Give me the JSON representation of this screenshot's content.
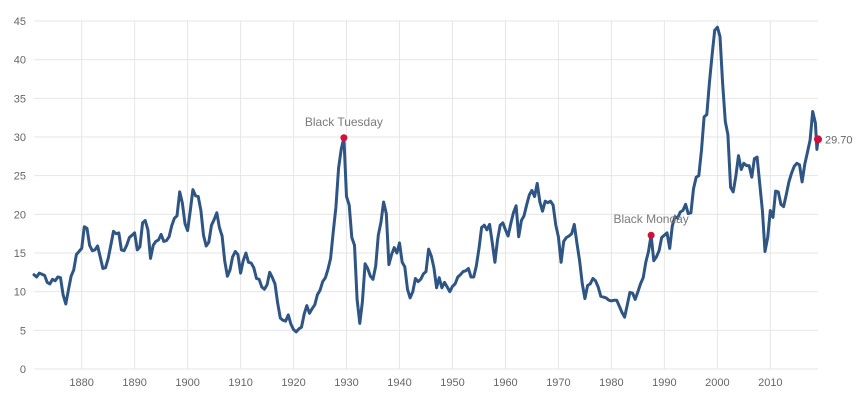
{
  "colors": {
    "line": "#2e5583",
    "marker": "#d0103a",
    "grid": "#e6e6e6",
    "text": "#666666"
  },
  "chart_data": {
    "type": "line",
    "title": "",
    "xlabel": "",
    "ylabel": "",
    "xlim": [
      1871,
      2019
    ],
    "ylim": [
      0,
      45
    ],
    "grid": true,
    "x_ticks": [
      1880,
      1890,
      1900,
      1910,
      1920,
      1930,
      1940,
      1950,
      1960,
      1970,
      1980,
      1990,
      2000,
      2010
    ],
    "y_ticks": [
      0,
      5,
      10,
      15,
      20,
      25,
      30,
      35,
      40,
      45
    ],
    "series": [
      {
        "points": [
          [
            1871.0,
            12.2
          ],
          [
            1871.5,
            11.9
          ],
          [
            1872.0,
            12.4
          ],
          [
            1873.0,
            12.1
          ],
          [
            1873.5,
            11.2
          ],
          [
            1874.0,
            11.0
          ],
          [
            1874.5,
            11.6
          ],
          [
            1875.0,
            11.4
          ],
          [
            1875.5,
            11.9
          ],
          [
            1876.0,
            11.8
          ],
          [
            1876.5,
            9.6
          ],
          [
            1877.0,
            8.4
          ],
          [
            1877.5,
            10.2
          ],
          [
            1878.0,
            12.0
          ],
          [
            1878.5,
            12.8
          ],
          [
            1879.0,
            14.8
          ],
          [
            1880.0,
            15.6
          ],
          [
            1880.5,
            18.4
          ],
          [
            1881.0,
            18.2
          ],
          [
            1881.5,
            16.0
          ],
          [
            1882.0,
            15.3
          ],
          [
            1882.5,
            15.4
          ],
          [
            1883.0,
            15.9
          ],
          [
            1883.5,
            14.5
          ],
          [
            1884.0,
            13.0
          ],
          [
            1884.5,
            13.1
          ],
          [
            1885.0,
            14.3
          ],
          [
            1885.5,
            16.0
          ],
          [
            1886.0,
            17.8
          ],
          [
            1886.5,
            17.5
          ],
          [
            1887.0,
            17.6
          ],
          [
            1887.5,
            15.4
          ],
          [
            1888.0,
            15.3
          ],
          [
            1888.5,
            16.0
          ],
          [
            1889.0,
            17.0
          ],
          [
            1889.5,
            17.3
          ],
          [
            1890.0,
            17.6
          ],
          [
            1890.5,
            15.4
          ],
          [
            1891.0,
            15.8
          ],
          [
            1891.5,
            18.9
          ],
          [
            1892.0,
            19.2
          ],
          [
            1892.5,
            18.0
          ],
          [
            1893.0,
            14.3
          ],
          [
            1893.5,
            16.0
          ],
          [
            1894.0,
            16.5
          ],
          [
            1894.5,
            16.7
          ],
          [
            1895.0,
            17.4
          ],
          [
            1895.5,
            16.5
          ],
          [
            1896.0,
            16.6
          ],
          [
            1896.5,
            17.1
          ],
          [
            1897.0,
            18.5
          ],
          [
            1897.5,
            19.5
          ],
          [
            1898.0,
            19.8
          ],
          [
            1898.5,
            22.9
          ],
          [
            1899.0,
            21.5
          ],
          [
            1899.5,
            18.8
          ],
          [
            1900.0,
            17.9
          ],
          [
            1900.5,
            20.5
          ],
          [
            1901.0,
            23.2
          ],
          [
            1901.5,
            22.4
          ],
          [
            1902.0,
            22.3
          ],
          [
            1902.5,
            20.5
          ],
          [
            1903.0,
            17.3
          ],
          [
            1903.5,
            15.9
          ],
          [
            1904.0,
            16.4
          ],
          [
            1904.5,
            18.6
          ],
          [
            1905.0,
            19.3
          ],
          [
            1905.5,
            20.2
          ],
          [
            1906.0,
            18.3
          ],
          [
            1906.5,
            17.2
          ],
          [
            1907.0,
            14.0
          ],
          [
            1907.5,
            12.0
          ],
          [
            1908.0,
            12.8
          ],
          [
            1908.5,
            14.5
          ],
          [
            1909.0,
            15.2
          ],
          [
            1909.5,
            14.8
          ],
          [
            1910.0,
            12.4
          ],
          [
            1910.5,
            14.0
          ],
          [
            1911.0,
            15.0
          ],
          [
            1911.5,
            13.8
          ],
          [
            1912.0,
            13.7
          ],
          [
            1912.5,
            13.1
          ],
          [
            1913.0,
            11.7
          ],
          [
            1913.5,
            11.6
          ],
          [
            1914.0,
            10.6
          ],
          [
            1914.5,
            10.3
          ],
          [
            1915.0,
            10.9
          ],
          [
            1915.5,
            12.5
          ],
          [
            1916.0,
            11.8
          ],
          [
            1916.5,
            11.0
          ],
          [
            1917.0,
            8.5
          ],
          [
            1917.5,
            6.6
          ],
          [
            1918.0,
            6.3
          ],
          [
            1918.5,
            6.2
          ],
          [
            1919.0,
            7.0
          ],
          [
            1919.5,
            5.8
          ],
          [
            1920.0,
            5.1
          ],
          [
            1920.5,
            4.8
          ],
          [
            1921.0,
            5.2
          ],
          [
            1921.5,
            5.4
          ],
          [
            1922.0,
            7.1
          ],
          [
            1922.5,
            8.2
          ],
          [
            1923.0,
            7.2
          ],
          [
            1923.5,
            7.8
          ],
          [
            1924.0,
            8.3
          ],
          [
            1924.5,
            9.6
          ],
          [
            1925.0,
            10.2
          ],
          [
            1925.5,
            11.3
          ],
          [
            1926.0,
            11.8
          ],
          [
            1926.5,
            12.9
          ],
          [
            1927.0,
            14.3
          ],
          [
            1927.5,
            17.8
          ],
          [
            1928.0,
            20.9
          ],
          [
            1928.5,
            26.0
          ],
          [
            1929.0,
            28.4
          ],
          [
            1929.5,
            29.9
          ],
          [
            1930.0,
            22.3
          ],
          [
            1930.5,
            21.2
          ],
          [
            1931.0,
            17.0
          ],
          [
            1931.5,
            16.0
          ],
          [
            1932.0,
            9.0
          ],
          [
            1932.5,
            5.9
          ],
          [
            1933.0,
            8.7
          ],
          [
            1933.5,
            13.6
          ],
          [
            1934.0,
            13.0
          ],
          [
            1934.5,
            12.0
          ],
          [
            1935.0,
            11.6
          ],
          [
            1935.5,
            13.3
          ],
          [
            1936.0,
            17.3
          ],
          [
            1936.5,
            19.0
          ],
          [
            1937.0,
            21.6
          ],
          [
            1937.5,
            20.1
          ],
          [
            1938.0,
            13.5
          ],
          [
            1938.5,
            14.8
          ],
          [
            1939.0,
            15.7
          ],
          [
            1939.5,
            15.0
          ],
          [
            1940.0,
            16.3
          ],
          [
            1940.5,
            13.8
          ],
          [
            1941.0,
            13.2
          ],
          [
            1941.5,
            10.3
          ],
          [
            1942.0,
            9.2
          ],
          [
            1942.5,
            10.0
          ],
          [
            1943.0,
            11.7
          ],
          [
            1943.5,
            11.3
          ],
          [
            1944.0,
            11.6
          ],
          [
            1944.5,
            12.3
          ],
          [
            1945.0,
            12.6
          ],
          [
            1945.5,
            15.5
          ],
          [
            1946.0,
            14.6
          ],
          [
            1946.5,
            13.1
          ],
          [
            1947.0,
            10.5
          ],
          [
            1947.5,
            11.8
          ],
          [
            1948.0,
            10.5
          ],
          [
            1948.5,
            11.2
          ],
          [
            1949.0,
            10.6
          ],
          [
            1949.5,
            10.0
          ],
          [
            1950.0,
            10.7
          ],
          [
            1950.5,
            11.0
          ],
          [
            1951.0,
            11.9
          ],
          [
            1951.5,
            12.2
          ],
          [
            1952.0,
            12.6
          ],
          [
            1952.5,
            12.7
          ],
          [
            1953.0,
            13.0
          ],
          [
            1953.5,
            11.9
          ],
          [
            1954.0,
            11.9
          ],
          [
            1954.5,
            13.3
          ],
          [
            1955.0,
            15.6
          ],
          [
            1955.5,
            18.3
          ],
          [
            1956.0,
            18.6
          ],
          [
            1956.5,
            18.0
          ],
          [
            1957.0,
            18.7
          ],
          [
            1957.5,
            16.4
          ],
          [
            1958.0,
            13.8
          ],
          [
            1958.5,
            16.7
          ],
          [
            1959.0,
            18.6
          ],
          [
            1959.5,
            18.9
          ],
          [
            1960.0,
            18.0
          ],
          [
            1960.5,
            17.2
          ],
          [
            1961.0,
            18.8
          ],
          [
            1961.5,
            20.2
          ],
          [
            1962.0,
            21.1
          ],
          [
            1962.5,
            17.1
          ],
          [
            1963.0,
            19.2
          ],
          [
            1963.5,
            19.8
          ],
          [
            1964.0,
            21.2
          ],
          [
            1964.5,
            22.5
          ],
          [
            1965.0,
            23.1
          ],
          [
            1965.5,
            22.3
          ],
          [
            1966.0,
            24.0
          ],
          [
            1966.5,
            21.6
          ],
          [
            1967.0,
            20.4
          ],
          [
            1967.5,
            21.7
          ],
          [
            1968.0,
            21.5
          ],
          [
            1968.5,
            21.7
          ],
          [
            1969.0,
            21.2
          ],
          [
            1969.5,
            18.6
          ],
          [
            1970.0,
            17.1
          ],
          [
            1970.5,
            13.8
          ],
          [
            1971.0,
            16.5
          ],
          [
            1971.5,
            17.0
          ],
          [
            1972.0,
            17.2
          ],
          [
            1972.5,
            17.5
          ],
          [
            1973.0,
            18.7
          ],
          [
            1973.5,
            16.2
          ],
          [
            1974.0,
            14.0
          ],
          [
            1974.5,
            11.0
          ],
          [
            1975.0,
            9.1
          ],
          [
            1975.5,
            10.8
          ],
          [
            1976.0,
            11.0
          ],
          [
            1976.5,
            11.7
          ],
          [
            1977.0,
            11.4
          ],
          [
            1977.5,
            10.6
          ],
          [
            1978.0,
            9.4
          ],
          [
            1978.5,
            9.3
          ],
          [
            1979.0,
            9.2
          ],
          [
            1979.5,
            8.9
          ],
          [
            1980.0,
            8.8
          ],
          [
            1980.5,
            8.9
          ],
          [
            1981.0,
            8.9
          ],
          [
            1981.5,
            8.1
          ],
          [
            1982.0,
            7.3
          ],
          [
            1982.5,
            6.7
          ],
          [
            1983.0,
            8.3
          ],
          [
            1983.5,
            9.9
          ],
          [
            1984.0,
            9.8
          ],
          [
            1984.5,
            9.0
          ],
          [
            1985.0,
            10.0
          ],
          [
            1985.5,
            11.0
          ],
          [
            1986.0,
            11.8
          ],
          [
            1986.5,
            13.8
          ],
          [
            1987.0,
            15.2
          ],
          [
            1987.5,
            17.3
          ],
          [
            1988.0,
            14.0
          ],
          [
            1988.5,
            14.5
          ],
          [
            1989.0,
            15.3
          ],
          [
            1989.5,
            17.0
          ],
          [
            1990.0,
            17.3
          ],
          [
            1990.5,
            17.6
          ],
          [
            1991.0,
            15.6
          ],
          [
            1991.5,
            18.5
          ],
          [
            1992.0,
            19.7
          ],
          [
            1992.5,
            19.5
          ],
          [
            1993.0,
            20.3
          ],
          [
            1993.5,
            20.5
          ],
          [
            1994.0,
            21.3
          ],
          [
            1994.5,
            20.1
          ],
          [
            1995.0,
            20.2
          ],
          [
            1995.5,
            23.3
          ],
          [
            1996.0,
            24.8
          ],
          [
            1996.5,
            25.0
          ],
          [
            1997.0,
            28.3
          ],
          [
            1997.5,
            32.6
          ],
          [
            1998.0,
            32.9
          ],
          [
            1998.5,
            37.0
          ],
          [
            1999.0,
            40.6
          ],
          [
            1999.5,
            43.8
          ],
          [
            2000.0,
            44.2
          ],
          [
            2000.5,
            43.0
          ],
          [
            2001.0,
            37.0
          ],
          [
            2001.5,
            32.0
          ],
          [
            2002.0,
            30.3
          ],
          [
            2002.5,
            23.5
          ],
          [
            2003.0,
            22.9
          ],
          [
            2003.5,
            25.0
          ],
          [
            2004.0,
            27.6
          ],
          [
            2004.5,
            25.8
          ],
          [
            2005.0,
            26.6
          ],
          [
            2005.5,
            26.3
          ],
          [
            2006.0,
            26.3
          ],
          [
            2006.5,
            24.8
          ],
          [
            2007.0,
            27.2
          ],
          [
            2007.5,
            27.4
          ],
          [
            2008.0,
            24.0
          ],
          [
            2008.5,
            20.5
          ],
          [
            2009.0,
            15.2
          ],
          [
            2009.5,
            17.0
          ],
          [
            2010.0,
            20.5
          ],
          [
            2010.5,
            19.6
          ],
          [
            2011.0,
            23.0
          ],
          [
            2011.5,
            22.9
          ],
          [
            2012.0,
            21.3
          ],
          [
            2012.5,
            21.0
          ],
          [
            2013.0,
            22.5
          ],
          [
            2013.5,
            24.2
          ],
          [
            2014.0,
            25.3
          ],
          [
            2014.5,
            26.2
          ],
          [
            2015.0,
            26.6
          ],
          [
            2015.5,
            26.4
          ],
          [
            2016.0,
            24.2
          ],
          [
            2016.5,
            26.5
          ],
          [
            2017.0,
            28.0
          ],
          [
            2017.5,
            29.6
          ],
          [
            2018.0,
            33.3
          ],
          [
            2018.5,
            31.8
          ],
          [
            2018.8,
            28.4
          ],
          [
            2019.0,
            29.7
          ]
        ]
      }
    ],
    "annotations": [
      {
        "label": "Black Tuesday",
        "x": 1929.5,
        "y": 29.9
      },
      {
        "label": "Black Monday",
        "x": 1987.5,
        "y": 17.3
      }
    ],
    "end_value": {
      "label": "29.70",
      "x": 2019.0,
      "y": 29.7
    }
  }
}
